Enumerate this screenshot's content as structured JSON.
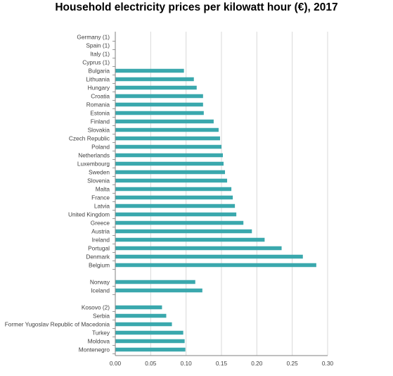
{
  "chart_data": {
    "type": "bar",
    "orientation": "horizontal",
    "title": "Household electricity prices per kilowatt hour (€), 2017",
    "xlabel": "",
    "ylabel": "",
    "xlim": [
      0,
      0.3
    ],
    "x_ticks": [
      "0.00",
      "0.05",
      "0.10",
      "0.15",
      "0.20",
      "0.25",
      "0.30"
    ],
    "grid": true,
    "legend": "none",
    "bar_color": "#3aa8ad",
    "categories": [
      "Germany (1)",
      "Spain (1)",
      "Italy (1)",
      "Cyprus (1)",
      "Bulgaria",
      "Lithuania",
      "Hungary",
      "Croatia",
      "Romania",
      "Estonia",
      "Finland",
      "Slovakia",
      "Czech Republic",
      "Poland",
      "Netherlands",
      "Luxembourg",
      "Sweden",
      "Slovenia",
      "Malta",
      "France",
      "Latvia",
      "United Kingdom",
      "Greece",
      "Austria",
      "Ireland",
      "Portugal",
      "Denmark",
      "Belgium",
      "",
      "Norway",
      "Iceland",
      "",
      "Kosovo (2)",
      "Serbia",
      "Former Yugoslav Republic of Macedonia",
      "Turkey",
      "Moldova",
      "Montenegro"
    ],
    "values": [
      null,
      null,
      null,
      null,
      0.097,
      0.111,
      0.115,
      0.124,
      0.124,
      0.125,
      0.139,
      0.146,
      0.148,
      0.15,
      0.152,
      0.153,
      0.155,
      0.158,
      0.164,
      0.166,
      0.169,
      0.171,
      0.181,
      0.193,
      0.211,
      0.235,
      0.265,
      0.284,
      null,
      0.113,
      0.123,
      null,
      0.066,
      0.072,
      0.08,
      0.096,
      0.098,
      0.099
    ]
  }
}
